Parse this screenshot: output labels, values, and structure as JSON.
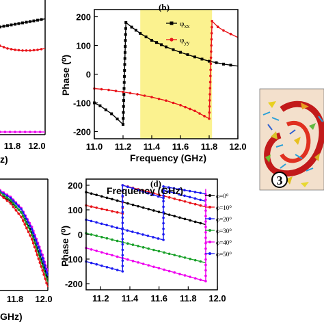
{
  "chart_data": [
    {
      "panel": "top-left (partial)",
      "type": "line",
      "x_ticks": [
        "11.8",
        "12.0"
      ],
      "xlabel": "z)",
      "series": [
        {
          "color": "#000000",
          "x": [
            11.7,
            11.75,
            11.8,
            11.85,
            11.9,
            11.95,
            12.0
          ],
          "y": [
            0.8,
            0.81,
            0.82,
            0.83,
            0.84,
            0.85,
            0.86
          ]
        },
        {
          "color": "#e8141a",
          "x": [
            11.7,
            11.75,
            11.8,
            11.85,
            11.9,
            11.95,
            12.0
          ],
          "y": [
            0.66,
            0.64,
            0.63,
            0.625,
            0.625,
            0.63,
            0.64
          ]
        },
        {
          "color": "#ee00ee",
          "x": [
            11.7,
            12.0
          ],
          "y": [
            0.02,
            0.02
          ]
        }
      ]
    },
    {
      "panel": "(b)",
      "type": "line",
      "title": "(b)",
      "xlabel": "Frequency (GHz)",
      "ylabel": "Phase (⁰)",
      "xlim": [
        11.0,
        12.0
      ],
      "ylim": [
        -225,
        225
      ],
      "x_ticks": [
        "11.0",
        "11.2",
        "11.4",
        "11.6",
        "11.8",
        "12.0"
      ],
      "y_ticks": [
        "200",
        "100",
        "0",
        "-100",
        "-200"
      ],
      "highlight_band": {
        "x_from": 11.32,
        "x_to": 11.82,
        "color": "#fbf28f"
      },
      "legend": [
        "φ",
        "φ"
      ],
      "legend_subscripts": [
        "xx",
        "yy"
      ],
      "legend_position": "top-right",
      "series": [
        {
          "color": "#000000",
          "x": [
            11.0,
            11.04,
            11.08,
            11.12,
            11.16,
            11.2,
            11.22,
            11.26,
            11.32,
            11.4,
            11.5,
            11.6,
            11.7,
            11.8,
            11.9,
            12.0
          ],
          "y": [
            -100,
            -110,
            -124,
            -138,
            -156,
            -175,
            180,
            164,
            142,
            118,
            95,
            76,
            60,
            45,
            35,
            28
          ]
        },
        {
          "color": "#e8141a",
          "x": [
            11.0,
            11.1,
            11.2,
            11.3,
            11.4,
            11.5,
            11.6,
            11.7,
            11.8,
            11.82,
            11.86,
            11.9,
            11.95,
            12.0
          ],
          "y": [
            -50,
            -55,
            -62,
            -70,
            -80,
            -92,
            -108,
            -128,
            -155,
            185,
            165,
            152,
            140,
            128
          ]
        }
      ]
    },
    {
      "panel": "bottom-left (partial)",
      "type": "line",
      "x_ticks": [
        "11.8",
        "12.0"
      ],
      "xlabel": "GHz)",
      "series": [
        {
          "color": "#000000",
          "x": [
            11.55,
            11.65,
            11.75,
            11.85,
            11.95,
            12.0
          ],
          "y": [
            0.86,
            0.8,
            0.7,
            0.52,
            0.25,
            0.1
          ]
        },
        {
          "color": "#ee00ee",
          "x": [
            11.55,
            11.65,
            11.75,
            11.85,
            11.95,
            12.0
          ],
          "y": [
            0.9,
            0.84,
            0.74,
            0.57,
            0.32,
            0.16
          ]
        },
        {
          "color": "#1c1cf0",
          "x": [
            11.55,
            11.65,
            11.75,
            11.85,
            11.95,
            12.0
          ],
          "y": [
            0.89,
            0.83,
            0.73,
            0.55,
            0.29,
            0.13
          ]
        },
        {
          "color": "#18a028",
          "x": [
            11.55,
            11.65,
            11.75,
            11.85,
            11.95,
            12.0
          ],
          "y": [
            0.88,
            0.81,
            0.7,
            0.5,
            0.22,
            0.07
          ]
        },
        {
          "color": "#e8141a",
          "x": [
            11.55,
            11.65,
            11.75,
            11.85,
            11.95,
            12.0
          ],
          "y": [
            0.86,
            0.78,
            0.66,
            0.46,
            0.18,
            0.03
          ]
        }
      ]
    },
    {
      "panel": "(d)",
      "type": "line",
      "title": "(d)",
      "xlabel": "Frequency (GHz)",
      "ylabel": "Phase (⁰)",
      "xlim": [
        11.1,
        12.0
      ],
      "ylim": [
        -225,
        225
      ],
      "x_ticks": [
        "11.2",
        "11.4",
        "11.6",
        "11.8",
        "12.0"
      ],
      "y_ticks": [
        "200",
        "100",
        "0",
        "-100",
        "-200"
      ],
      "legend_position": "right",
      "series": [
        {
          "name": "φ=0⁰",
          "color": "#000000",
          "x": [
            11.1,
            11.92
          ],
          "y": [
            172,
            40
          ]
        },
        {
          "name": "φ=10⁰",
          "color": "#e8141a",
          "x": [
            11.1,
            11.35,
            11.35,
            11.92
          ],
          "y": [
            118,
            85,
            200,
            112
          ]
        },
        {
          "name": "φ=20⁰",
          "color": "#1c1cf0",
          "x": [
            11.1,
            11.63,
            11.63,
            11.92
          ],
          "y": [
            60,
            -22,
            180,
            135
          ]
        },
        {
          "name": "φ=30⁰",
          "color": "#18a028",
          "x": [
            11.1,
            11.92
          ],
          "y": [
            5,
            -115
          ]
        },
        {
          "name": "φ=40⁰",
          "color": "#ee00ee",
          "x": [
            11.1,
            11.92,
            11.92
          ],
          "y": [
            -55,
            -190,
            185
          ]
        },
        {
          "name": "φ=50⁰",
          "color": "#1c1cf0",
          "x": [
            11.1,
            11.35,
            11.35,
            11.63,
            11.63,
            11.92
          ],
          "y": [
            -110,
            -150,
            200,
            148,
            195,
            165
          ]
        }
      ]
    }
  ],
  "inset": {
    "label": "3",
    "label_symbol": "circled-number",
    "background": "#f3e0cc"
  }
}
